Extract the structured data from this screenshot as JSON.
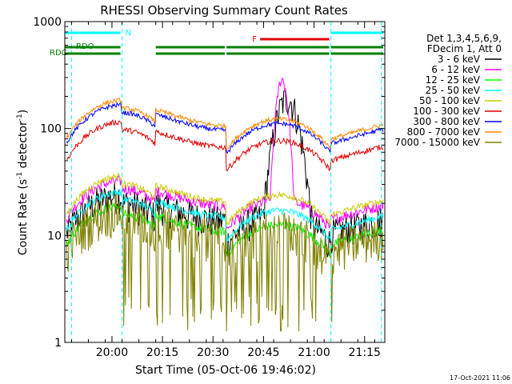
{
  "chart_data": {
    "type": "line",
    "title": "RHESSI Observing Summary Count Rates",
    "xlabel": "Start Time (05-Oct-06 19:46:02)",
    "ylabel_main": "Count Rate (s",
    "ylabel_sup1": "-1",
    "ylabel_mid": " detector",
    "ylabel_sup2": "-1",
    "ylabel_end": ")",
    "yscale": "log",
    "xlim_min": [
      0,
      95
    ],
    "ylim": [
      1,
      1000
    ],
    "x_ticks": [
      {
        "min": 14,
        "label": "20:00"
      },
      {
        "min": 29,
        "label": "20:15"
      },
      {
        "min": 44,
        "label": "20:30"
      },
      {
        "min": 59,
        "label": "20:45"
      },
      {
        "min": 74,
        "label": "21:00"
      },
      {
        "min": 89,
        "label": "21:15"
      }
    ],
    "y_ticks": [
      {
        "value": 1,
        "label": "1"
      },
      {
        "value": 10,
        "label": "10"
      },
      {
        "value": 100,
        "label": "100"
      },
      {
        "value": 1000,
        "label": "1000"
      }
    ],
    "legend": {
      "header": [
        "Det 1,3,4,5,6,9,",
        "FDecim 1, Att 0"
      ],
      "position": "right"
    },
    "series": [
      {
        "name": "3 - 6 keV",
        "color": "#000000",
        "flare_peak": 190
      },
      {
        "name": "6 - 12 keV",
        "color": "#ff00ff",
        "flare_peak": 290
      },
      {
        "name": "12 - 25 keV",
        "color": "#00ff00",
        "flare_peak": 0
      },
      {
        "name": "25 - 50 keV",
        "color": "#00ffff",
        "flare_peak": 0
      },
      {
        "name": "50 - 100 keV",
        "color": "#cccc00",
        "flare_peak": 0
      },
      {
        "name": "100 - 300 keV",
        "color": "#e00000",
        "flare_peak": 0
      },
      {
        "name": "300 - 800 keV",
        "color": "#0000ff",
        "flare_peak": 0
      },
      {
        "name": "800 - 7000 keV",
        "color": "#ff8800",
        "flare_peak": 0
      },
      {
        "name": "7000 - 15000 keV",
        "color": "#808000",
        "flare_peak": 0
      }
    ],
    "flag_bars": [
      {
        "label": "N",
        "color": "#00ffff",
        "row": 0,
        "segments": [
          [
            0,
            17
          ],
          [
            79,
            95
          ]
        ]
      },
      {
        "label": "F",
        "color": "#e00000",
        "row": 1,
        "segments": [
          [
            58,
            79
          ]
        ]
      },
      {
        "label": "RDO",
        "color": "#008000",
        "row": 2,
        "segments": [
          [
            0,
            17
          ],
          [
            27,
            48
          ],
          [
            48,
            79
          ],
          [
            79,
            95
          ]
        ]
      },
      {
        "label": "RDC",
        "color": "#008000",
        "row": 3,
        "segments": [
          [
            0,
            17
          ],
          [
            27,
            48
          ],
          [
            48,
            79
          ],
          [
            79,
            95
          ]
        ]
      }
    ],
    "dashed_verticals_min": [
      2,
      17,
      79,
      94
    ]
  },
  "timestamp": "17-Oct-2021 11:06"
}
